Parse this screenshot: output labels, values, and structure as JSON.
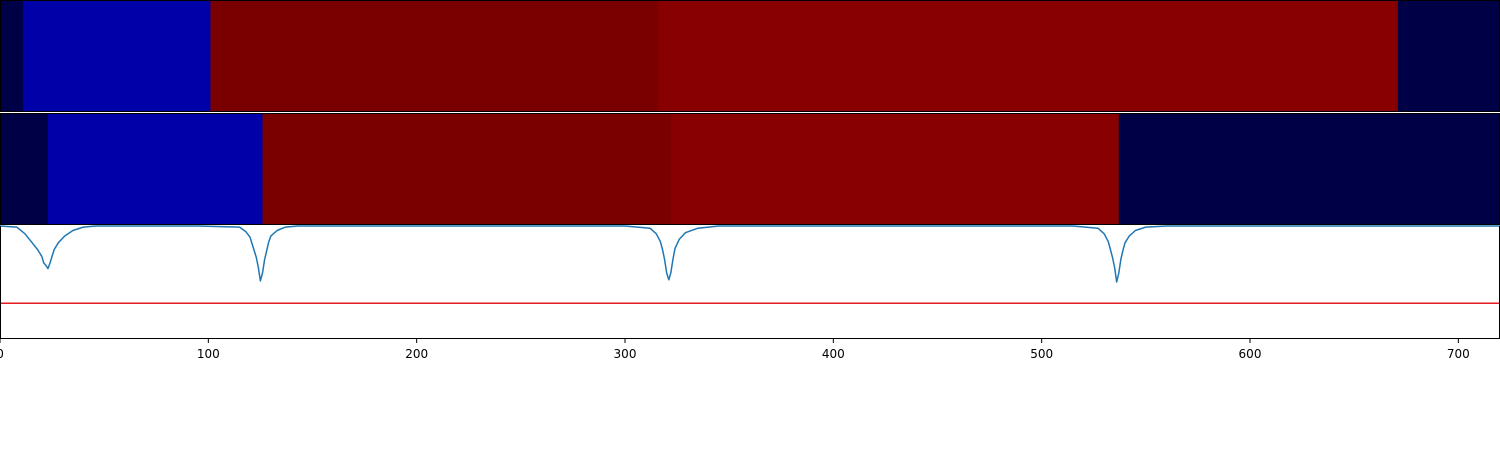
{
  "chart_data": [
    {
      "type": "heatmap",
      "name": "row-1",
      "segments": [
        {
          "start": 0,
          "end": 11,
          "color": "#000046"
        },
        {
          "start": 11,
          "end": 101,
          "color": "#0000a8"
        },
        {
          "start": 101,
          "end": 316,
          "color": "#7a0000"
        },
        {
          "start": 316,
          "end": 671,
          "color": "#880000"
        },
        {
          "start": 671,
          "end": 720,
          "color": "#000046"
        }
      ]
    },
    {
      "type": "heatmap",
      "name": "row-2",
      "segments": [
        {
          "start": 0,
          "end": 23,
          "color": "#000046"
        },
        {
          "start": 23,
          "end": 126,
          "color": "#0000a8"
        },
        {
          "start": 126,
          "end": 322,
          "color": "#7a0000"
        },
        {
          "start": 322,
          "end": 537,
          "color": "#880000"
        },
        {
          "start": 537,
          "end": 720,
          "color": "#000046"
        }
      ]
    },
    {
      "type": "line",
      "xlim": [
        0,
        720
      ],
      "ylim": [
        0,
        1
      ],
      "xticks": [
        0,
        100,
        200,
        300,
        400,
        500,
        600,
        700
      ],
      "xtick_labels": [
        "0",
        "100",
        "200",
        "300",
        "400",
        "500",
        "600",
        "700"
      ],
      "threshold": {
        "y": 0.31,
        "color": "#e41a1c"
      },
      "series": [
        {
          "color": "#1f77b4",
          "x": [
            0,
            8,
            12,
            15,
            18,
            20,
            21,
            22,
            23,
            24,
            25,
            26,
            28,
            31,
            35,
            40,
            46,
            95,
            115,
            118,
            120,
            121,
            122,
            123,
            124,
            125,
            126,
            127,
            128,
            129,
            130,
            133,
            137,
            143,
            300,
            312,
            315,
            317,
            318,
            319,
            320,
            321,
            322,
            323,
            324,
            326,
            329,
            335,
            345,
            370,
            515,
            527,
            530,
            532,
            533,
            534,
            535,
            536,
            537,
            538,
            539,
            540,
            542,
            545,
            550,
            560,
            580,
            720
          ],
          "y": [
            1.0,
            0.99,
            0.93,
            0.86,
            0.79,
            0.73,
            0.67,
            0.65,
            0.62,
            0.67,
            0.73,
            0.79,
            0.85,
            0.91,
            0.96,
            0.99,
            1.0,
            1.0,
            0.99,
            0.95,
            0.9,
            0.84,
            0.78,
            0.72,
            0.63,
            0.51,
            0.58,
            0.7,
            0.78,
            0.86,
            0.91,
            0.96,
            0.99,
            1.0,
            1.0,
            0.98,
            0.93,
            0.86,
            0.79,
            0.7,
            0.58,
            0.52,
            0.58,
            0.7,
            0.8,
            0.88,
            0.94,
            0.98,
            1.0,
            1.0,
            1.0,
            0.98,
            0.93,
            0.86,
            0.79,
            0.72,
            0.63,
            0.5,
            0.58,
            0.7,
            0.78,
            0.85,
            0.91,
            0.96,
            0.99,
            1.0,
            1.0,
            1.0
          ]
        }
      ]
    }
  ]
}
